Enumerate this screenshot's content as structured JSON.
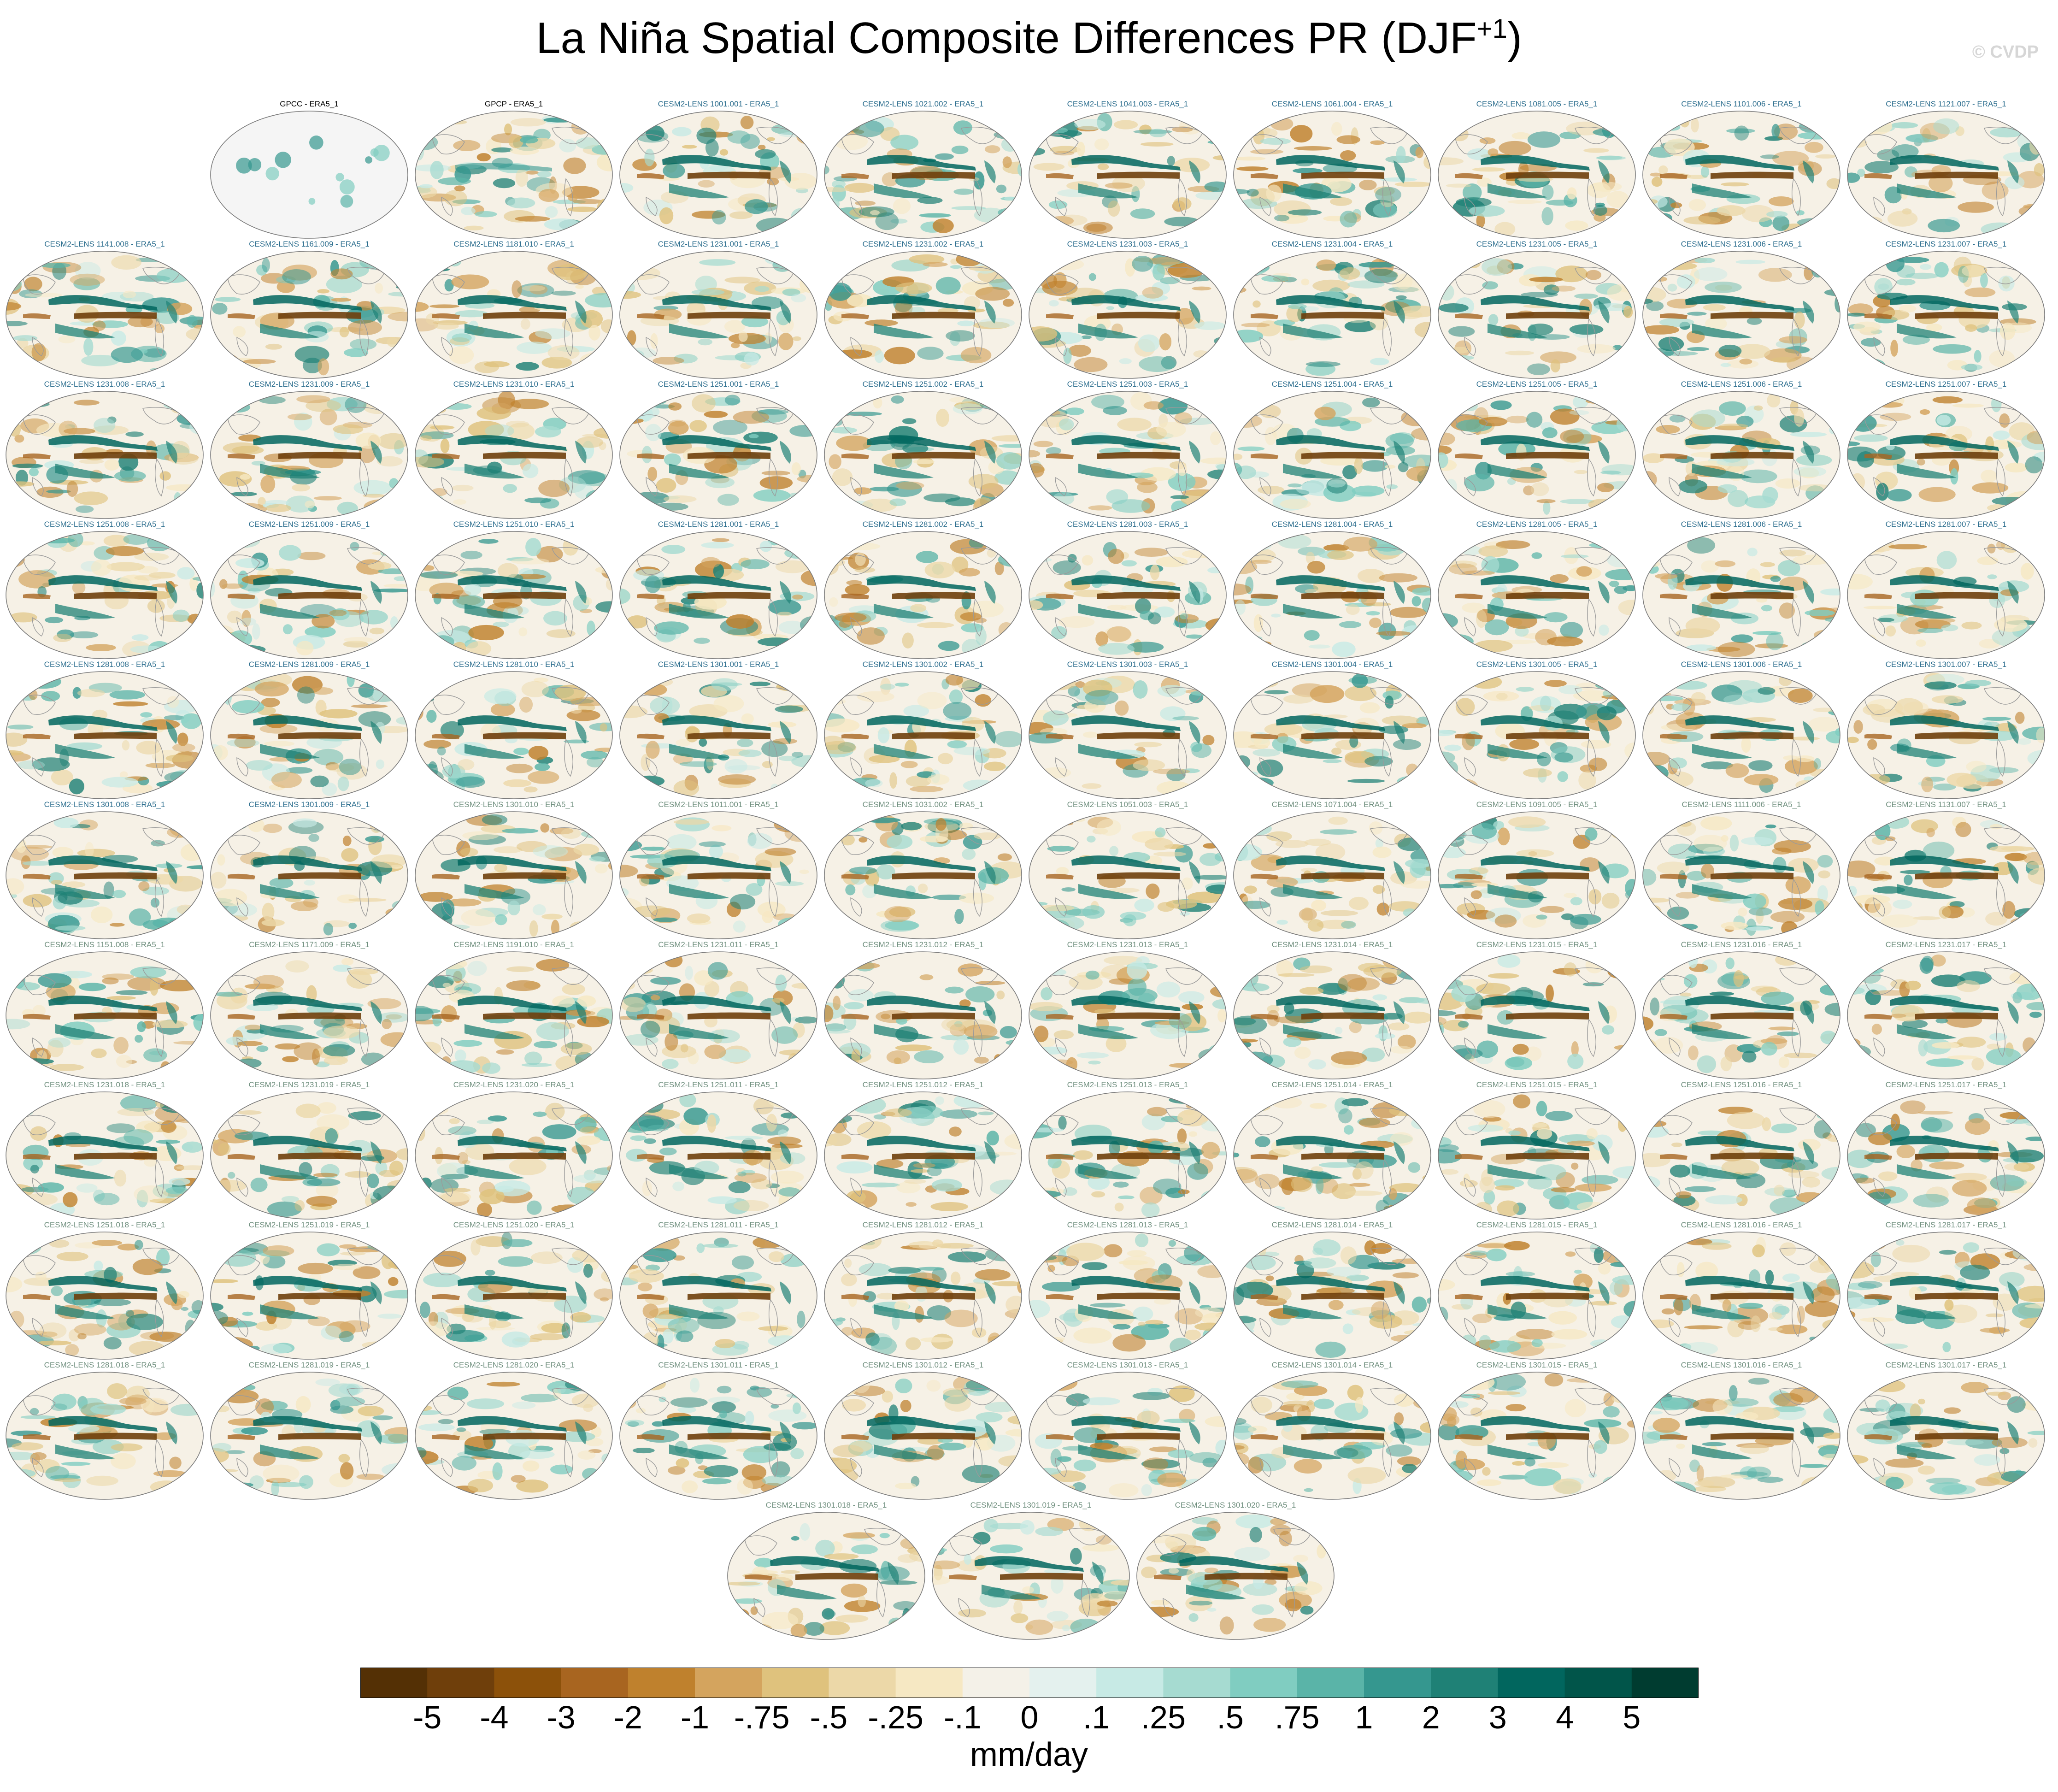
{
  "title": {
    "main": "La Niña Spatial Composite Differences PR (DJF",
    "sup": "+1",
    "close": ")"
  },
  "watermark": "© CVDP",
  "panels": [
    {
      "label": "GPCC - ERA5_1",
      "kind": "obs-mask"
    },
    {
      "label": "GPCP - ERA5_1",
      "kind": "obs"
    },
    {
      "label": "CESM2-LENS 1001.001 - ERA5_1"
    },
    {
      "label": "CESM2-LENS 1021.002 - ERA5_1"
    },
    {
      "label": "CESM2-LENS 1041.003 - ERA5_1"
    },
    {
      "label": "CESM2-LENS 1061.004 - ERA5_1"
    },
    {
      "label": "CESM2-LENS 1081.005 - ERA5_1"
    },
    {
      "label": "CESM2-LENS 1101.006 - ERA5_1"
    },
    {
      "label": "CESM2-LENS 1121.007 - ERA5_1"
    },
    {
      "label": "CESM2-LENS 1141.008 - ERA5_1"
    },
    {
      "label": "CESM2-LENS 1161.009 - ERA5_1"
    },
    {
      "label": "CESM2-LENS 1181.010 - ERA5_1"
    },
    {
      "label": "CESM2-LENS 1231.001 - ERA5_1"
    },
    {
      "label": "CESM2-LENS 1231.002 - ERA5_1"
    },
    {
      "label": "CESM2-LENS 1231.003 - ERA5_1"
    },
    {
      "label": "CESM2-LENS 1231.004 - ERA5_1"
    },
    {
      "label": "CESM2-LENS 1231.005 - ERA5_1"
    },
    {
      "label": "CESM2-LENS 1231.006 - ERA5_1"
    },
    {
      "label": "CESM2-LENS 1231.007 - ERA5_1"
    },
    {
      "label": "CESM2-LENS 1231.008 - ERA5_1"
    },
    {
      "label": "CESM2-LENS 1231.009 - ERA5_1"
    },
    {
      "label": "CESM2-LENS 1231.010 - ERA5_1"
    },
    {
      "label": "CESM2-LENS 1251.001 - ERA5_1"
    },
    {
      "label": "CESM2-LENS 1251.002 - ERA5_1"
    },
    {
      "label": "CESM2-LENS 1251.003 - ERA5_1"
    },
    {
      "label": "CESM2-LENS 1251.004 - ERA5_1"
    },
    {
      "label": "CESM2-LENS 1251.005 - ERA5_1"
    },
    {
      "label": "CESM2-LENS 1251.006 - ERA5_1"
    },
    {
      "label": "CESM2-LENS 1251.007 - ERA5_1"
    },
    {
      "label": "CESM2-LENS 1251.008 - ERA5_1"
    },
    {
      "label": "CESM2-LENS 1251.009 - ERA5_1"
    },
    {
      "label": "CESM2-LENS 1251.010 - ERA5_1"
    },
    {
      "label": "CESM2-LENS 1281.001 - ERA5_1"
    },
    {
      "label": "CESM2-LENS 1281.002 - ERA5_1"
    },
    {
      "label": "CESM2-LENS 1281.003 - ERA5_1"
    },
    {
      "label": "CESM2-LENS 1281.004 - ERA5_1"
    },
    {
      "label": "CESM2-LENS 1281.005 - ERA5_1"
    },
    {
      "label": "CESM2-LENS 1281.006 - ERA5_1"
    },
    {
      "label": "CESM2-LENS 1281.007 - ERA5_1"
    },
    {
      "label": "CESM2-LENS 1281.008 - ERA5_1"
    },
    {
      "label": "CESM2-LENS 1281.009 - ERA5_1"
    },
    {
      "label": "CESM2-LENS 1281.010 - ERA5_1"
    },
    {
      "label": "CESM2-LENS 1301.001 - ERA5_1"
    },
    {
      "label": "CESM2-LENS 1301.002 - ERA5_1"
    },
    {
      "label": "CESM2-LENS 1301.003 - ERA5_1"
    },
    {
      "label": "CESM2-LENS 1301.004 - ERA5_1"
    },
    {
      "label": "CESM2-LENS 1301.005 - ERA5_1"
    },
    {
      "label": "CESM2-LENS 1301.006 - ERA5_1"
    },
    {
      "label": "CESM2-LENS 1301.007 - ERA5_1"
    },
    {
      "label": "CESM2-LENS 1301.008 - ERA5_1"
    },
    {
      "label": "CESM2-LENS 1301.009 - ERA5_1"
    },
    {
      "label": "CESM2-LENS 1301.010 - ERA5_1"
    },
    {
      "label": "CESM2-LENS 1011.001 - ERA5_1"
    },
    {
      "label": "CESM2-LENS 1031.002 - ERA5_1"
    },
    {
      "label": "CESM2-LENS 1051.003 - ERA5_1"
    },
    {
      "label": "CESM2-LENS 1071.004 - ERA5_1"
    },
    {
      "label": "CESM2-LENS 1091.005 - ERA5_1"
    },
    {
      "label": "CESM2-LENS 1111.006 - ERA5_1"
    },
    {
      "label": "CESM2-LENS 1131.007 - ERA5_1"
    },
    {
      "label": "CESM2-LENS 1151.008 - ERA5_1"
    },
    {
      "label": "CESM2-LENS 1171.009 - ERA5_1"
    },
    {
      "label": "CESM2-LENS 1191.010 - ERA5_1"
    },
    {
      "label": "CESM2-LENS 1231.011 - ERA5_1"
    },
    {
      "label": "CESM2-LENS 1231.012 - ERA5_1"
    },
    {
      "label": "CESM2-LENS 1231.013 - ERA5_1"
    },
    {
      "label": "CESM2-LENS 1231.014 - ERA5_1"
    },
    {
      "label": "CESM2-LENS 1231.015 - ERA5_1"
    },
    {
      "label": "CESM2-LENS 1231.016 - ERA5_1"
    },
    {
      "label": "CESM2-LENS 1231.017 - ERA5_1"
    },
    {
      "label": "CESM2-LENS 1231.018 - ERA5_1"
    },
    {
      "label": "CESM2-LENS 1231.019 - ERA5_1"
    },
    {
      "label": "CESM2-LENS 1231.020 - ERA5_1"
    },
    {
      "label": "CESM2-LENS 1251.011 - ERA5_1"
    },
    {
      "label": "CESM2-LENS 1251.012 - ERA5_1"
    },
    {
      "label": "CESM2-LENS 1251.013 - ERA5_1"
    },
    {
      "label": "CESM2-LENS 1251.014 - ERA5_1"
    },
    {
      "label": "CESM2-LENS 1251.015 - ERA5_1"
    },
    {
      "label": "CESM2-LENS 1251.016 - ERA5_1"
    },
    {
      "label": "CESM2-LENS 1251.017 - ERA5_1"
    },
    {
      "label": "CESM2-LENS 1251.018 - ERA5_1"
    },
    {
      "label": "CESM2-LENS 1251.019 - ERA5_1"
    },
    {
      "label": "CESM2-LENS 1251.020 - ERA5_1"
    },
    {
      "label": "CESM2-LENS 1281.011 - ERA5_1"
    },
    {
      "label": "CESM2-LENS 1281.012 - ERA5_1"
    },
    {
      "label": "CESM2-LENS 1281.013 - ERA5_1"
    },
    {
      "label": "CESM2-LENS 1281.014 - ERA5_1"
    },
    {
      "label": "CESM2-LENS 1281.015 - ERA5_1"
    },
    {
      "label": "CESM2-LENS 1281.016 - ERA5_1"
    },
    {
      "label": "CESM2-LENS 1281.017 - ERA5_1"
    },
    {
      "label": "CESM2-LENS 1281.018 - ERA5_1"
    },
    {
      "label": "CESM2-LENS 1281.019 - ERA5_1"
    },
    {
      "label": "CESM2-LENS 1281.020 - ERA5_1"
    },
    {
      "label": "CESM2-LENS 1301.011 - ERA5_1"
    },
    {
      "label": "CESM2-LENS 1301.012 - ERA5_1"
    },
    {
      "label": "CESM2-LENS 1301.013 - ERA5_1"
    },
    {
      "label": "CESM2-LENS 1301.014 - ERA5_1"
    },
    {
      "label": "CESM2-LENS 1301.015 - ERA5_1"
    },
    {
      "label": "CESM2-LENS 1301.016 - ERA5_1"
    },
    {
      "label": "CESM2-LENS 1301.017 - ERA5_1"
    },
    {
      "label": "CESM2-LENS 1301.018 - ERA5_1"
    },
    {
      "label": "CESM2-LENS 1301.019 - ERA5_1"
    },
    {
      "label": "CESM2-LENS 1301.020 - ERA5_1"
    }
  ],
  "colors": {
    "label_first_member_set": "#2c6e8e",
    "label_second_member_set": "#6f8f7e",
    "label_observations": "#000000",
    "map_background": "#f6f1e6",
    "obs_mask": "#e6e6e6",
    "coastline": "#9a9a9a"
  },
  "colorbar": {
    "units": "mm/day",
    "colors": [
      "#543005",
      "#6f3f0b",
      "#8c510a",
      "#a86520",
      "#bf812d",
      "#d4a45e",
      "#dfc27d",
      "#ecd8a8",
      "#f6e8c3",
      "#f4f1e8",
      "#e4f1ee",
      "#c7eae5",
      "#a6dbd1",
      "#80cdc1",
      "#5ab4a8",
      "#35978f",
      "#1f8176",
      "#01665e",
      "#01554a",
      "#003c30"
    ],
    "tick_labels": [
      "-5",
      "-4",
      "-3",
      "-2",
      "-1",
      "-.75",
      "-.5",
      "-.25",
      "-.1",
      "0",
      ".1",
      ".25",
      ".5",
      ".75",
      "1",
      "2",
      "3",
      "4",
      "5"
    ]
  }
}
